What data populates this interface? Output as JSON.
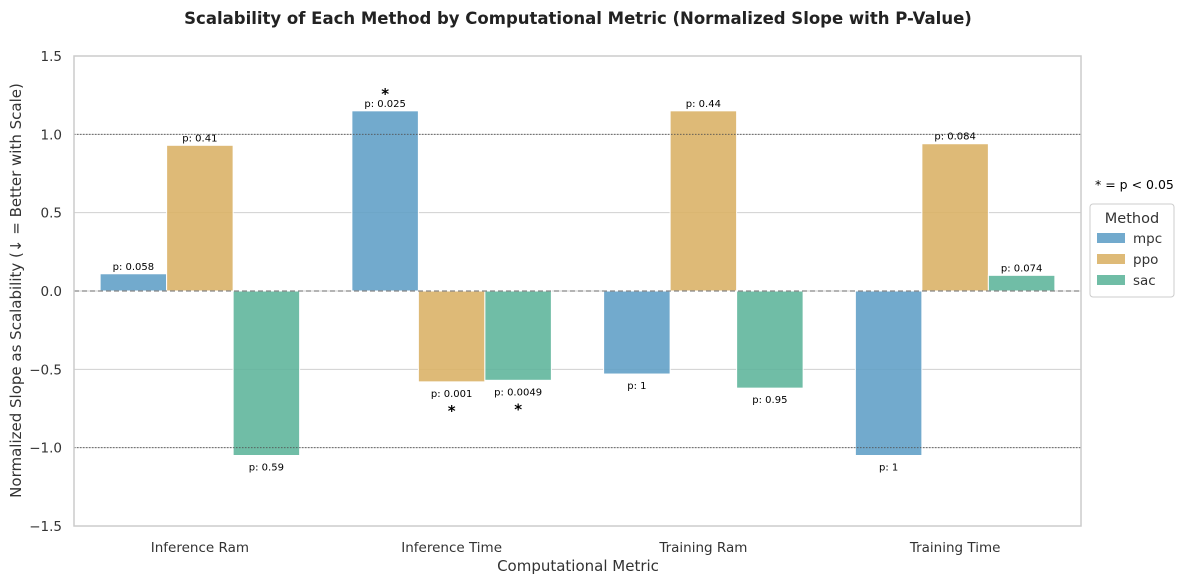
{
  "chart_data": {
    "type": "bar",
    "title": "Scalability of Each Method by Computational Metric (Normalized Slope with P-Value)",
    "xlabel": "Computational Metric",
    "ylabel": "Normalized Slope as Scalability (↓ = Better with Scale)",
    "ylim": [
      -1.5,
      1.5
    ],
    "yticks": [
      -1.5,
      -1.0,
      -0.5,
      0.0,
      0.5,
      1.0,
      1.5
    ],
    "ytick_labels": [
      "−1.5",
      "−1.0",
      "−0.5",
      "0.0",
      "0.5",
      "1.0",
      "1.5"
    ],
    "grid": true,
    "reference_lines": [
      1.0,
      0.0,
      -1.0
    ],
    "categories": [
      "Inference Ram",
      "Inference Time",
      "Training Ram",
      "Training Time"
    ],
    "series": [
      {
        "name": "mpc",
        "color": "#5f9ec6",
        "values": [
          0.11,
          1.15,
          -0.53,
          -1.05
        ],
        "p_labels": [
          "p: 0.058",
          "p: 0.025",
          "p: 1",
          "p: 1"
        ],
        "significant": [
          false,
          true,
          false,
          false
        ]
      },
      {
        "name": "ppo",
        "color": "#d9b064",
        "values": [
          0.93,
          -0.58,
          1.15,
          0.94
        ],
        "p_labels": [
          "p: 0.41",
          "p: 0.001",
          "p: 0.44",
          "p: 0.084"
        ],
        "significant": [
          false,
          true,
          false,
          false
        ]
      },
      {
        "name": "sac",
        "color": "#5cb49a",
        "values": [
          -1.05,
          -0.57,
          -0.62,
          0.1
        ],
        "p_labels": [
          "p: 0.59",
          "p: 0.0049",
          "p: 0.95",
          "p: 0.074"
        ],
        "significant": [
          false,
          true,
          false,
          false
        ]
      }
    ],
    "significance_marker": "*",
    "significance_note": "* = p < 0.05",
    "legend": {
      "title": "Method",
      "placement": "right"
    }
  }
}
